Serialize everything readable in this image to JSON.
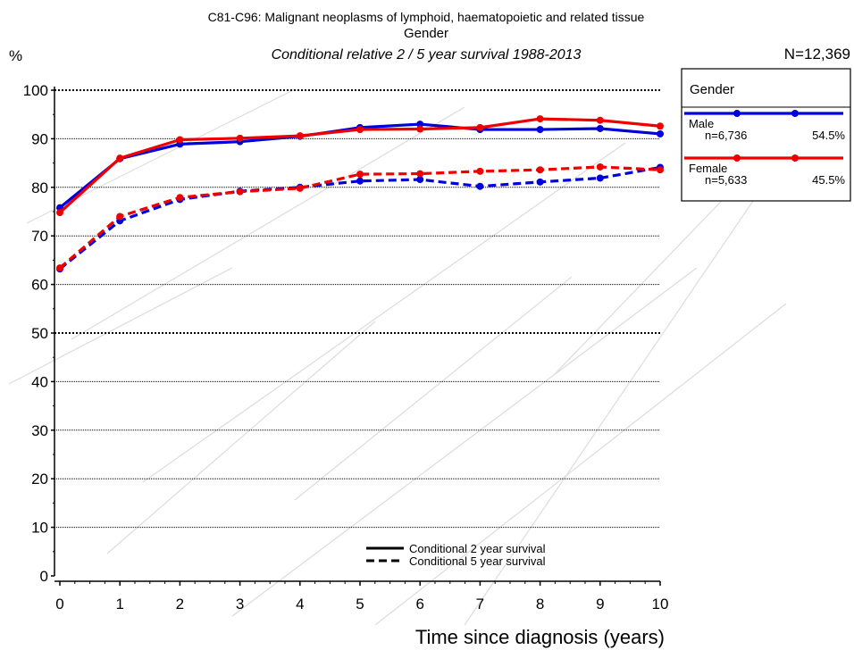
{
  "chart_data": {
    "type": "line",
    "title": "C81-C96: Malignant neoplasms of lymphoid, haematopoietic and related tissue",
    "subtitle": "Gender",
    "subtitle2": "Conditional relative 2 / 5 year survival 1988-2013",
    "n_total": "N=12,369",
    "ylabel": "%",
    "xlabel": "Time since diagnosis (years)",
    "x": [
      0,
      1,
      2,
      3,
      4,
      5,
      6,
      7,
      8,
      9,
      10
    ],
    "x_ticks": [
      "0",
      "1",
      "2",
      "3",
      "4",
      "5",
      "6",
      "7",
      "8",
      "9",
      "10"
    ],
    "y_ticks": [
      "0",
      "10",
      "20",
      "30",
      "40",
      "50",
      "60",
      "70",
      "80",
      "90",
      "100"
    ],
    "xlim": [
      0,
      10
    ],
    "ylim": [
      0,
      100
    ],
    "grid": true,
    "legend": {
      "title": "Gender",
      "placement": "top-right",
      "items": [
        {
          "name": "Male",
          "n": "n=6,736",
          "pct": "54.5%",
          "color": "#0000dd"
        },
        {
          "name": "Female",
          "n": "n=5,633",
          "pct": "45.5%",
          "color": "#ee0000"
        }
      ]
    },
    "line_legend": [
      {
        "label": "Conditional 2 year survival",
        "style": "solid"
      },
      {
        "label": "Conditional 5 year survival",
        "style": "dashed"
      }
    ],
    "series": [
      {
        "group": "Male",
        "style": "solid",
        "color": "#0000dd",
        "values": [
          75.8,
          85.9,
          88.9,
          89.4,
          90.5,
          92.3,
          93.0,
          91.9,
          91.9,
          92.1,
          91.0
        ]
      },
      {
        "group": "Female",
        "style": "solid",
        "color": "#ee0000",
        "values": [
          74.8,
          86.0,
          89.8,
          90.1,
          90.6,
          91.9,
          92.0,
          92.3,
          94.1,
          93.8,
          92.6
        ]
      },
      {
        "group": "Male",
        "style": "dashed",
        "color": "#0000dd",
        "values": [
          63.2,
          73.1,
          77.5,
          79.2,
          80.0,
          81.3,
          81.6,
          80.2,
          81.1,
          81.9,
          84.1
        ]
      },
      {
        "group": "Female",
        "style": "dashed",
        "color": "#ee0000",
        "values": [
          63.4,
          74.0,
          77.9,
          79.1,
          79.8,
          82.7,
          82.8,
          83.3,
          83.6,
          84.2,
          83.6
        ]
      }
    ]
  }
}
